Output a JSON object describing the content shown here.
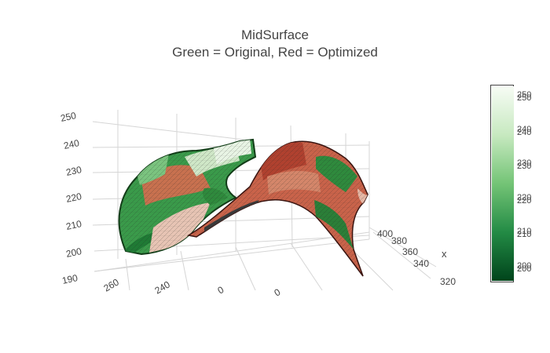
{
  "title": {
    "line1": "MidSurface",
    "line2": "Green = Original, Red = Optimized"
  },
  "chart_data": {
    "type": "surface3d",
    "title": "MidSurface",
    "subtitle": "Green = Original, Red = Optimized",
    "axes": {
      "x": {
        "label": "x",
        "ticks": [
          "400",
          "380",
          "360",
          "340",
          "320"
        ]
      },
      "y": {
        "label": "",
        "ticks": [
          "260",
          "240",
          "0",
          "0"
        ]
      },
      "z": {
        "label": "",
        "ticks": [
          "250",
          "240",
          "230",
          "220",
          "210",
          "200",
          "190"
        ]
      }
    },
    "series": [
      {
        "name": "Original",
        "color": "green",
        "colorscale": "Greens"
      },
      {
        "name": "Optimized",
        "color": "red",
        "colorscale": "Reds"
      }
    ],
    "colorbar": {
      "ticks": [
        "250",
        "250",
        "240",
        "240",
        "230",
        "230",
        "220",
        "220",
        "210",
        "210",
        "200",
        "200"
      ],
      "range": [
        196,
        253
      ],
      "colors": [
        "#00441b",
        "#238b45",
        "#74c476",
        "#c7e9c0",
        "#f7fcf5"
      ]
    },
    "grid": true
  }
}
